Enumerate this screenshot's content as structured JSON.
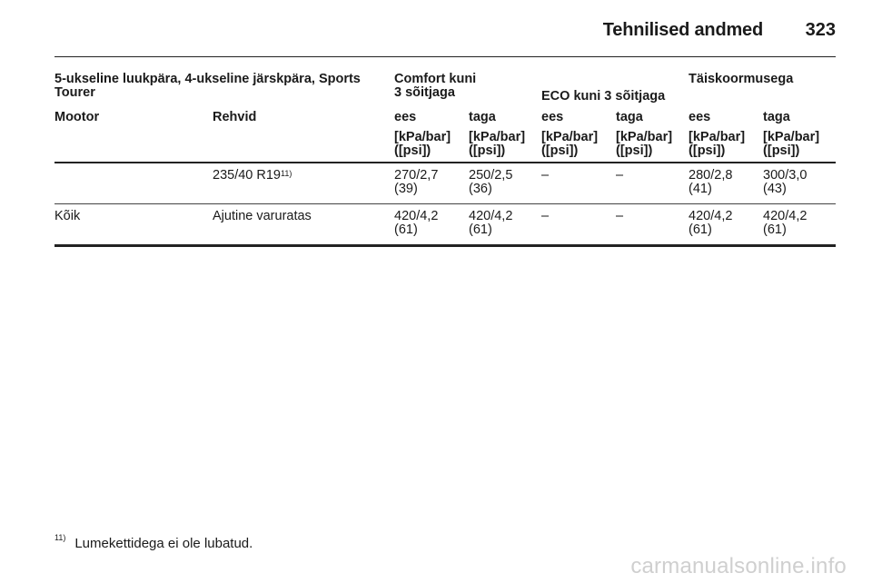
{
  "header": {
    "title": "Tehnilised andmed",
    "page": "323"
  },
  "table": {
    "group_headers": {
      "vehicle": "5-ukseline luukpära, 4-ukseline järskpära, Sports Tourer",
      "comfort": "Comfort kuni 3 sõitjaga",
      "eco": "ECO kuni 3 sõitjaga",
      "full": "Täiskoormusega"
    },
    "column_headers": [
      "Mootor",
      "Rehvid",
      "ees",
      "taga",
      "ees",
      "taga",
      "ees",
      "taga"
    ],
    "unit": "[kPa/bar] ([psi])",
    "rows": [
      {
        "engine": "",
        "tyre": "235/40 R19",
        "tyre_note": "11)",
        "values": [
          "270/2,7 (39)",
          "250/2,5 (36)",
          "–",
          "–",
          "280/2,8 (41)",
          "300/3,0 (43)"
        ]
      },
      {
        "engine": "Kõik",
        "tyre": "Ajutine varuratas",
        "tyre_note": "",
        "values": [
          "420/4,2 (61)",
          "420/4,2 (61)",
          "–",
          "–",
          "420/4,2 (61)",
          "420/4,2 (61)"
        ]
      }
    ]
  },
  "footnote": {
    "mark": "11)",
    "text": "Lumekettidega ei ole lubatud."
  },
  "watermark": "carmanualsonline.info"
}
